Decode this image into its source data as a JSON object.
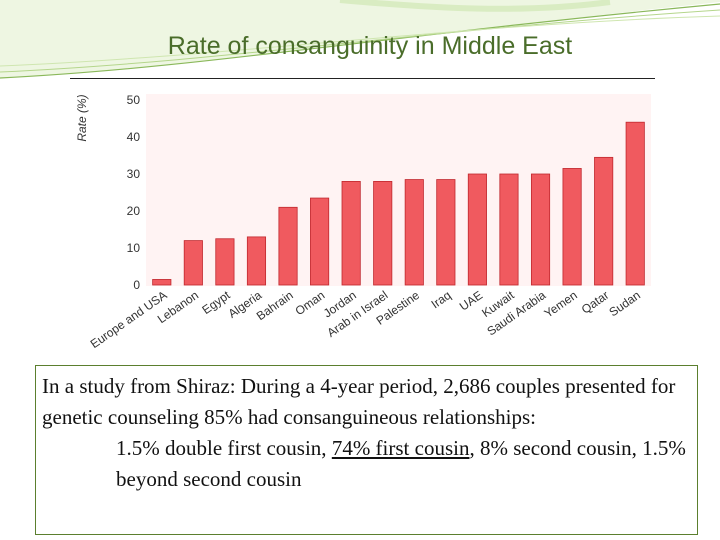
{
  "slide": {
    "title": "Rate of consanguinity in Middle East",
    "colors": {
      "title": "#4a6d2a",
      "bar": "#f05a5f",
      "bar_edge": "#c0282e",
      "textbox_border": "#5b7f2e"
    }
  },
  "chart_data": {
    "type": "bar",
    "title": "",
    "xlabel": "",
    "ylabel": "Rate (%)",
    "ylim": [
      0,
      50
    ],
    "yticks": [
      0,
      10,
      20,
      30,
      40,
      50
    ],
    "grid": false,
    "categories": [
      "Europe and USA",
      "Lebanon",
      "Egypt",
      "Algeria",
      "Bahrain",
      "Oman",
      "Jordan",
      "Arab in Israel",
      "Palestine",
      "Iraq",
      "UAE",
      "Kuwait",
      "Saudi Arabia",
      "Yemen",
      "Qatar",
      "Sudan"
    ],
    "values": [
      1.5,
      12,
      12.5,
      13,
      21,
      23.5,
      28,
      28,
      28.5,
      28.5,
      30,
      30,
      30,
      31.5,
      34.5,
      44
    ]
  },
  "study": {
    "intro": "In a study from Shiraz: During a 4-year period, 2,686 couples presented for genetic counseling 85% had consanguineous relationships:",
    "part1": "1.5% double first cousin, ",
    "part2": "74% first cousin",
    "part3": ", 8% second cousin, 1.5% beyond second cousin"
  }
}
